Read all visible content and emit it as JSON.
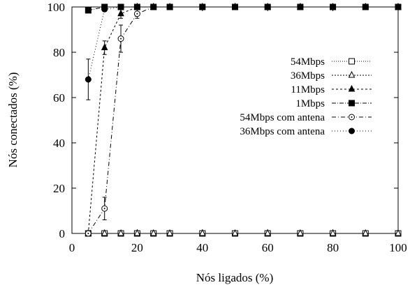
{
  "chart_data": {
    "type": "line",
    "xlabel": "Nós ligados (%)",
    "ylabel": "Nós conectados (%)",
    "xlim": [
      0,
      100
    ],
    "ylim": [
      0,
      100
    ],
    "xticks": [
      0,
      20,
      40,
      60,
      80,
      100
    ],
    "yticks": [
      0,
      20,
      40,
      60,
      80,
      100
    ],
    "x_tick_labels": [
      "0",
      "20",
      "40",
      "60",
      "80",
      "100"
    ],
    "y_tick_labels": [
      "0",
      "20",
      "40",
      "60",
      "80",
      "100"
    ],
    "grid": false,
    "legend_position": "center-right",
    "series": [
      {
        "name": "54Mbps",
        "marker": "open-square",
        "dash": "1,2",
        "x": [
          5,
          10,
          15,
          20,
          25,
          30,
          40,
          50,
          60,
          70,
          80,
          90,
          100
        ],
        "y": [
          0,
          0,
          0,
          0,
          0,
          0,
          0,
          0,
          0,
          0,
          0,
          0,
          0
        ]
      },
      {
        "name": "36Mbps",
        "marker": "open-triangle",
        "dash": "2,2",
        "x": [
          5,
          10,
          15,
          20,
          25,
          30,
          40,
          50,
          60,
          70,
          80,
          90,
          100
        ],
        "y": [
          0,
          0,
          0,
          0,
          0,
          0,
          0,
          0,
          0,
          0,
          0,
          0,
          0
        ]
      },
      {
        "name": "11Mbps",
        "marker": "filled-triangle",
        "dash": "3,3",
        "x": [
          5,
          10,
          15,
          20,
          25,
          30,
          40,
          50,
          60,
          70,
          80,
          90,
          100
        ],
        "y": [
          0,
          82,
          97,
          100,
          100,
          100,
          100,
          100,
          100,
          100,
          100,
          100,
          100
        ],
        "err": [
          0,
          3,
          2,
          0,
          0,
          0,
          0,
          0,
          0,
          0,
          0,
          0,
          0
        ]
      },
      {
        "name": "1Mbps",
        "marker": "filled-square",
        "dash": "6,2,1,2",
        "x": [
          5,
          10,
          15,
          20,
          25,
          30,
          40,
          50,
          60,
          70,
          80,
          90,
          100
        ],
        "y": [
          98.5,
          100,
          100,
          100,
          100,
          100,
          100,
          100,
          100,
          100,
          100,
          100,
          100
        ],
        "err": [
          0,
          0,
          0,
          0,
          0,
          0,
          0,
          0,
          0,
          0,
          0,
          0,
          0
        ]
      },
      {
        "name": "54Mbps com antena",
        "marker": "open-circle-dot",
        "dash": "6,3,1,3",
        "x": [
          5,
          10,
          15,
          20,
          25,
          30,
          40,
          50,
          60,
          70,
          80,
          90,
          100
        ],
        "y": [
          0,
          11,
          86,
          97,
          100,
          100,
          100,
          100,
          100,
          100,
          100,
          100,
          100
        ],
        "err": [
          0,
          5,
          6,
          2,
          0,
          0,
          0,
          0,
          0,
          0,
          0,
          0,
          0
        ]
      },
      {
        "name": "36Mbps com antena",
        "marker": "filled-circle",
        "dash": "1,3",
        "x": [
          5,
          10,
          15,
          20,
          25,
          30,
          40,
          50,
          60,
          70,
          80,
          90,
          100
        ],
        "y": [
          68,
          99,
          100,
          100,
          100,
          100,
          100,
          100,
          100,
          100,
          100,
          100,
          100
        ],
        "err": [
          9,
          1,
          0,
          0,
          0,
          0,
          0,
          0,
          0,
          0,
          0,
          0,
          0
        ]
      }
    ]
  }
}
